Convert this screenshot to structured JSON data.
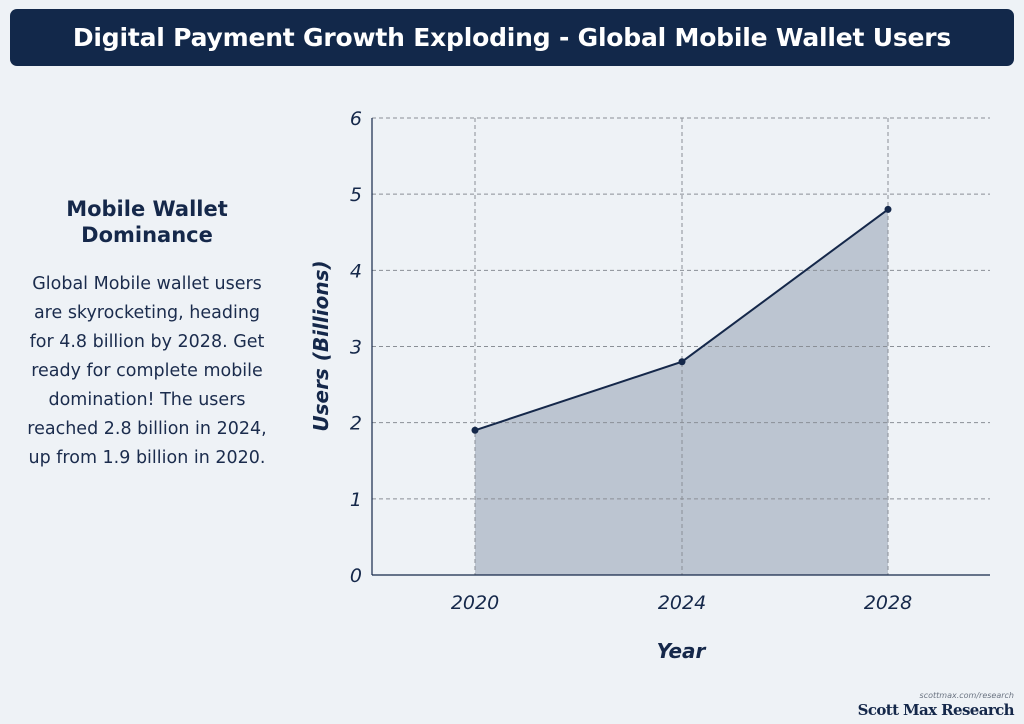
{
  "header": {
    "title": "Digital Payment Growth Exploding - Global Mobile Wallet Users"
  },
  "side_panel": {
    "heading": "Mobile Wallet Dominance",
    "body": "Global Mobile wallet users are skyrocketing, heading for 4.8 billion by 2028. Get ready for complete mobile domination! The users reached 2.8 billion in 2024, up from 1.9 billion in 2020."
  },
  "footer": {
    "url": "scottmax.com/research",
    "brand": "Scott Max Research"
  },
  "colors": {
    "title_bg": "#12284a",
    "page_bg": "#eef2f6",
    "line": "#15284a",
    "area_fill": "#bcc5d1",
    "grid": "#8a8f96"
  },
  "chart_data": {
    "type": "area",
    "x": [
      "2020",
      "2024",
      "2028"
    ],
    "series": [
      {
        "values": [
          1.9,
          2.8,
          4.8
        ]
      }
    ],
    "xlabel": "Year",
    "ylabel": "Users (Billions)",
    "ylim": [
      0,
      6
    ],
    "yticks": [
      0,
      1,
      2,
      3,
      4,
      5,
      6
    ],
    "grid": true,
    "markers": true
  }
}
